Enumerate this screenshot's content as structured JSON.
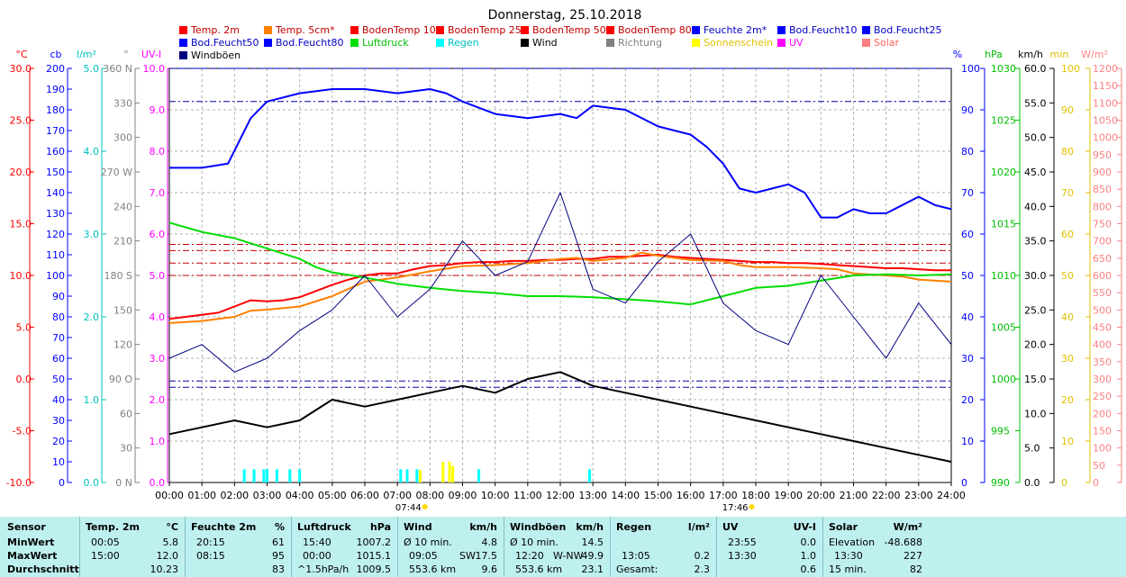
{
  "chart_data": {
    "type": "line",
    "title": "Donnerstag, 25.10.2018",
    "x_ticks": [
      "00:00",
      "01:00",
      "02:00",
      "03:00",
      "04:00",
      "05:00",
      "06:00",
      "07:00",
      "08:00",
      "09:00",
      "10:00",
      "11:00",
      "12:00",
      "13:00",
      "14:00",
      "15:00",
      "16:00",
      "17:00",
      "18:00",
      "19:00",
      "20:00",
      "21:00",
      "22:00",
      "23:00",
      "24:00"
    ],
    "sunrise": "07:44",
    "sunset": "17:46",
    "legend": [
      {
        "name": "Temp. 2m",
        "color": "#ff0000"
      },
      {
        "name": "Temp. 5cm*",
        "color": "#ff8000"
      },
      {
        "name": "BodenTemp 10",
        "color": "#ff0000"
      },
      {
        "name": "BodenTemp 25",
        "color": "#ff0000"
      },
      {
        "name": "BodenTemp 50",
        "color": "#ff0000"
      },
      {
        "name": "BodenTemp 80",
        "color": "#ff0000"
      },
      {
        "name": "Feuchte 2m*",
        "color": "#0000ff"
      },
      {
        "name": "Bod.Feucht10",
        "color": "#0000ff"
      },
      {
        "name": "Bod.Feucht25",
        "color": "#0000ff"
      },
      {
        "name": "Bod.Feucht50",
        "color": "#0000ff"
      },
      {
        "name": "Bod.Feucht80",
        "color": "#0000ff"
      },
      {
        "name": "Luftdruck",
        "color": "#00dd00"
      },
      {
        "name": "Regen",
        "color": "#00ffff"
      },
      {
        "name": "Wind",
        "color": "#000000"
      },
      {
        "name": "Richtung",
        "color": "#808080"
      },
      {
        "name": "Sonnenschein",
        "color": "#ffff00"
      },
      {
        "name": "UV",
        "color": "#ff00ff"
      },
      {
        "name": "Solar",
        "color": "#ff8080"
      },
      {
        "name": "Windböen",
        "color": "#000080"
      }
    ],
    "axes": [
      {
        "unit": "°C",
        "color": "#ff0000",
        "ticks": [
          "30.0",
          "25.0",
          "20.0",
          "15.0",
          "10.0",
          "5.0",
          "0.0",
          "-5.0",
          "-10.0"
        ]
      },
      {
        "unit": "cb",
        "color": "#0000ff",
        "ticks": [
          "200",
          "190",
          "180",
          "170",
          "160",
          "150",
          "140",
          "130",
          "120",
          "110",
          "100",
          "90",
          "80",
          "70",
          "60",
          "50",
          "40",
          "30",
          "20",
          "10",
          "0"
        ]
      },
      {
        "unit": "l/m²",
        "color": "#00c0c0",
        "ticks": [
          "5.0",
          "4.0",
          "3.0",
          "2.0",
          "1.0",
          "0.0"
        ]
      },
      {
        "unit": "°",
        "color": "#808080",
        "ticks": [
          "360 N",
          "330",
          "300",
          "270 W",
          "240",
          "210",
          "180 S",
          "150",
          "120",
          "90 O",
          "60",
          "30",
          "0 N"
        ]
      },
      {
        "unit": "UV-I",
        "color": "#ff00ff",
        "ticks": [
          "10.0",
          "9.0",
          "8.0",
          "7.0",
          "6.0",
          "5.0",
          "4.0",
          "3.0",
          "2.0",
          "1.0",
          "0.0"
        ]
      },
      {
        "unit": "%",
        "color": "#0000ff",
        "ticks": [
          "100",
          "90",
          "80",
          "70",
          "60",
          "50",
          "40",
          "30",
          "20",
          "10",
          "0"
        ]
      },
      {
        "unit": "hPa",
        "color": "#00c000",
        "ticks": [
          "1030",
          "1025",
          "1020",
          "1015",
          "1010",
          "1005",
          "1000",
          "995",
          "990"
        ]
      },
      {
        "unit": "km/h",
        "color": "#000000",
        "ticks": [
          "60.0",
          "55.0",
          "50.0",
          "45.0",
          "40.0",
          "35.0",
          "30.0",
          "25.0",
          "20.0",
          "15.0",
          "10.0",
          "5.0",
          "0.0"
        ]
      },
      {
        "unit": "min",
        "color": "#e0c000",
        "ticks": [
          "100",
          "90",
          "80",
          "70",
          "60",
          "50",
          "40",
          "30",
          "20",
          "10",
          "0"
        ]
      },
      {
        "unit": "W/m²",
        "color": "#ff8080",
        "ticks": [
          "1200",
          "1150",
          "1100",
          "1050",
          "1000",
          "950",
          "900",
          "850",
          "800",
          "750",
          "700",
          "650",
          "600",
          "550",
          "500",
          "450",
          "400",
          "350",
          "300",
          "250",
          "200",
          "150",
          "100",
          "50",
          "0"
        ]
      }
    ],
    "series": [
      {
        "name": "Temp. 2m",
        "unit": "°C",
        "x": [
          0,
          0.5,
          1,
          1.5,
          2,
          2.5,
          3,
          3.5,
          4,
          4.5,
          5,
          5.5,
          6,
          6.5,
          7,
          7.5,
          8,
          8.5,
          9,
          9.5,
          10,
          10.5,
          11,
          11.5,
          12,
          12.5,
          13,
          13.5,
          14,
          14.5,
          15,
          15.5,
          16,
          16.5,
          17,
          17.5,
          18,
          18.5,
          19,
          19.5,
          20,
          20.5,
          21,
          21.5,
          22,
          22.5,
          23,
          23.5,
          24
        ],
        "values": [
          5.8,
          6.0,
          6.2,
          6.4,
          7.0,
          7.6,
          7.5,
          7.6,
          7.9,
          8.5,
          9.1,
          9.6,
          10.0,
          10.2,
          10.2,
          10.6,
          10.9,
          11.0,
          11.2,
          11.3,
          11.3,
          11.4,
          11.4,
          11.5,
          11.5,
          11.6,
          11.6,
          11.8,
          11.8,
          11.9,
          12.0,
          11.8,
          11.7,
          11.6,
          11.5,
          11.4,
          11.3,
          11.3,
          11.2,
          11.2,
          11.1,
          11.0,
          10.9,
          10.8,
          10.7,
          10.7,
          10.6,
          10.5,
          10.5
        ]
      },
      {
        "name": "Temp. 5cm*",
        "unit": "°C",
        "x": [
          0,
          1,
          2,
          2.5,
          3,
          4,
          5,
          6,
          7,
          8,
          9,
          10,
          11,
          12,
          12.5,
          13,
          14,
          14.5,
          15,
          16,
          17,
          17.5,
          18,
          19,
          20,
          20.5,
          21,
          22,
          22.5,
          23,
          24
        ],
        "values": [
          5.4,
          5.6,
          6.0,
          6.6,
          6.7,
          7.0,
          8.0,
          9.4,
          9.8,
          10.4,
          10.9,
          11.0,
          11.2,
          11.6,
          11.7,
          11.4,
          11.7,
          12.2,
          11.9,
          11.5,
          11.4,
          11.0,
          10.8,
          10.8,
          10.7,
          10.6,
          10.2,
          10.0,
          9.9,
          9.6,
          9.4
        ]
      },
      {
        "name": "Feuchte 2m*",
        "unit": "%",
        "x": [
          0,
          1,
          1.8,
          2.5,
          3,
          4,
          5,
          6,
          7,
          8,
          8.5,
          9,
          10,
          11,
          12,
          12.5,
          13,
          14,
          15,
          16,
          16.5,
          17,
          17.5,
          18,
          18.5,
          19,
          19.5,
          20,
          20.5,
          21,
          21.5,
          22,
          22.5,
          23,
          23.5,
          24
        ],
        "values": [
          76,
          76,
          77,
          88,
          92,
          94,
          95,
          95,
          94,
          95,
          94,
          92,
          89,
          88,
          89,
          88,
          91,
          90,
          86,
          84,
          81,
          77,
          71,
          70,
          71,
          72,
          70,
          64,
          64,
          66,
          65,
          65,
          67,
          69,
          67,
          66
        ]
      },
      {
        "name": "Luftdruck",
        "unit": "hPa",
        "x": [
          0,
          1,
          2,
          3,
          4,
          4.5,
          5,
          6,
          7,
          8,
          9,
          10,
          11,
          12,
          13,
          14,
          15,
          16,
          17,
          18,
          19,
          20,
          21,
          22,
          23,
          24
        ],
        "values": [
          1015.1,
          1014.2,
          1013.6,
          1012.6,
          1011.6,
          1010.8,
          1010.3,
          1009.8,
          1009.2,
          1008.8,
          1008.5,
          1008.3,
          1008.0,
          1008.0,
          1007.9,
          1007.7,
          1007.5,
          1007.2,
          1008.0,
          1008.8,
          1009.0,
          1009.5,
          1010.0,
          1010.1,
          1010.0,
          1010.1
        ]
      },
      {
        "name": "Wind",
        "unit": "km/h",
        "x": [
          0,
          1,
          2,
          3,
          4,
          5,
          6,
          7,
          8,
          9,
          10,
          11,
          12,
          13,
          14,
          15,
          16,
          17,
          18,
          19,
          20,
          21,
          22,
          23,
          24
        ],
        "values": [
          7,
          8,
          9,
          8,
          9,
          12,
          11,
          12,
          13,
          14,
          13,
          15,
          16,
          14,
          13,
          12,
          11,
          10,
          9,
          8,
          7,
          6,
          5,
          4,
          3
        ]
      },
      {
        "name": "Windböen",
        "unit": "km/h",
        "x": [
          0,
          1,
          2,
          3,
          4,
          5,
          6,
          7,
          8,
          9,
          10,
          11,
          12,
          13,
          14,
          15,
          16,
          17,
          18,
          19,
          20,
          21,
          22,
          23,
          24
        ],
        "values": [
          18,
          20,
          16,
          18,
          22,
          25,
          30,
          24,
          28,
          35,
          30,
          32,
          42,
          28,
          26,
          32,
          36,
          26,
          22,
          20,
          30,
          24,
          18,
          26,
          20
        ]
      }
    ],
    "reference_lines": [
      {
        "name": "BodenTemp 10",
        "unit": "°C",
        "value": 10.0
      },
      {
        "name": "BodenTemp 25",
        "unit": "°C",
        "value": 11.2
      },
      {
        "name": "BodenTemp 50",
        "unit": "°C",
        "value": 12.4
      },
      {
        "name": "BodenTemp 80",
        "unit": "°C",
        "value": 13.0
      },
      {
        "name": "Bod.Feucht10",
        "unit": "cb",
        "value": 49
      },
      {
        "name": "Bod.Feucht25",
        "unit": "cb",
        "value": 46
      },
      {
        "name": "Bod.Feucht50",
        "unit": "cb",
        "value": 184
      },
      {
        "name": "Bod.Feucht80",
        "unit": "cb",
        "value": 200
      }
    ],
    "rain_bars": {
      "unit": "l/m²",
      "times": [
        2.3,
        2.6,
        2.9,
        3.0,
        3.3,
        3.7,
        4.0,
        7.1,
        7.3,
        7.6,
        9.5,
        12.9
      ],
      "values": [
        0.1,
        0.1,
        0.1,
        0.1,
        0.1,
        0.1,
        0.1,
        0.1,
        0.1,
        0.1,
        0.1,
        0.1
      ]
    },
    "sunshine_bars": {
      "unit": "min",
      "times": [
        7.7,
        8.4,
        8.6,
        8.7
      ],
      "values": [
        3,
        5,
        5,
        4
      ]
    },
    "ylim_temp": [
      -10,
      30
    ],
    "ylim_humidity": [
      0,
      100
    ],
    "ylim_pressure": [
      990,
      1030
    ],
    "ylim_wind": [
      0,
      60
    ]
  },
  "stats": {
    "sensor": {
      "title": "Sensor",
      "rows": [
        "MinWert",
        "MaxWert",
        "Durchschnitt"
      ]
    },
    "temp": {
      "title": "Temp. 2m",
      "unit": "°C",
      "min_time": "00:05",
      "min": "5.8",
      "max_time": "15:00",
      "max": "12.0",
      "avg": "10.23"
    },
    "humidity": {
      "title": "Feuchte 2m",
      "unit": "%",
      "min_time": "20:15",
      "min": "61",
      "max_time": "08:15",
      "max": "95",
      "avg": "83"
    },
    "pressure": {
      "title": "Luftdruck",
      "unit": "hPa",
      "min_time": "15:40",
      "min": "1007.2",
      "max_time": "00:00",
      "max": "1015.1",
      "trend": "^1.5hPa/h",
      "avg": "1009.5"
    },
    "wind": {
      "title": "Wind",
      "unit": "km/h",
      "min_label": "Ø 10 min.",
      "min": "4.8",
      "max_time": "09:05",
      "max_dir": "SW",
      "max": "17.5",
      "dist": "553.6 km",
      "avg": "9.6"
    },
    "gust": {
      "title": "Windböen",
      "unit": "km/h",
      "min_label": "Ø 10 min.",
      "min": "14.5",
      "max_time": "12:20",
      "max_dir": "W-NW",
      "max": "49.9",
      "dist": "553.6 km",
      "avg": "23.1"
    },
    "rain": {
      "title": "Regen",
      "unit": "l/m²",
      "max_time": "13:05",
      "max": "0.2",
      "total_label": "Gesamt:",
      "total": "2.3"
    },
    "uv": {
      "title": "UV",
      "unit": "UV-I",
      "min_time": "23:55",
      "min": "0.0",
      "max_time": "13:30",
      "max": "1.0",
      "avg": "0.6"
    },
    "solar": {
      "title": "Solar",
      "unit": "W/m²",
      "elev_label": "Elevation",
      "elev": "-48.688",
      "max_time": "13:30",
      "max": "227",
      "avg_label": "15 min.",
      "avg": "82"
    }
  }
}
